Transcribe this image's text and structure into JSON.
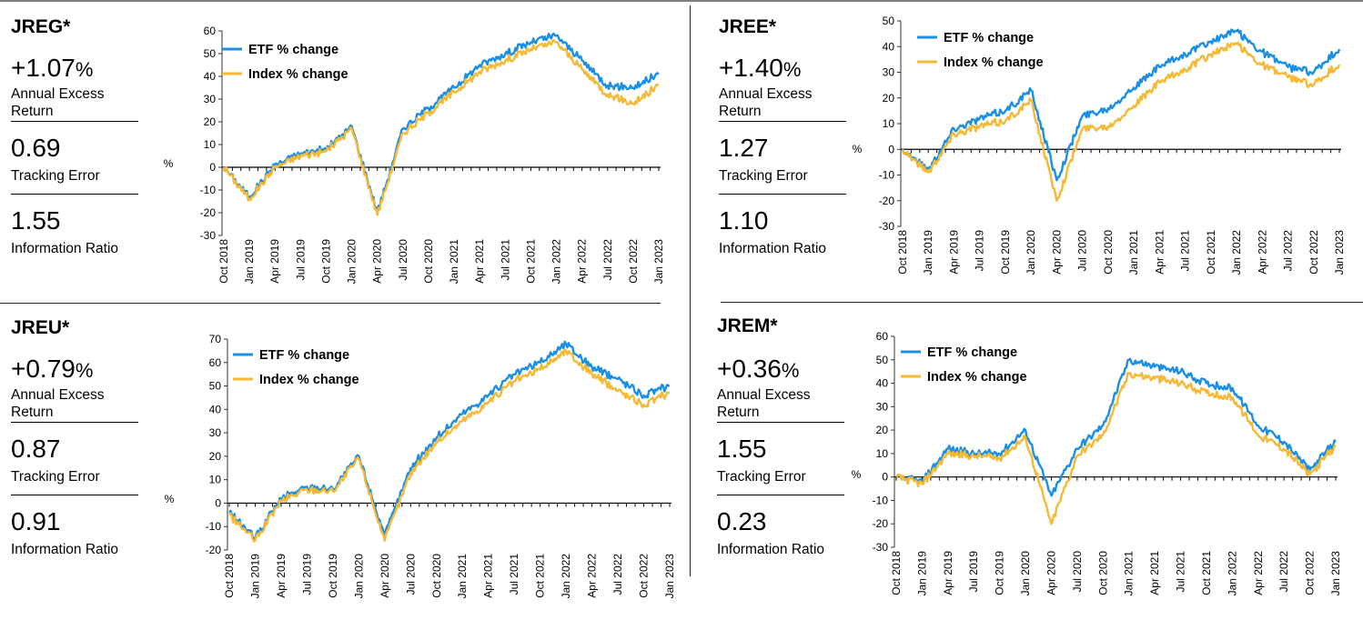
{
  "colors": {
    "etf": "#1a8fe3",
    "index": "#f5b935"
  },
  "panels": [
    {
      "ticker": "JREG*",
      "annual_excess_return": "+1.07",
      "pct_sign": "%",
      "annual_excess_return_label_1": "Annual Excess",
      "annual_excess_return_label_2": "Return",
      "tracking_error": "0.69",
      "tracking_error_label": "Tracking Error",
      "information_ratio": "1.55",
      "information_ratio_label": "Information Ratio"
    },
    {
      "ticker": "JREE*",
      "annual_excess_return": "+1.40",
      "pct_sign": "%",
      "annual_excess_return_label_1": "Annual Excess",
      "annual_excess_return_label_2": "Return",
      "tracking_error": "1.27",
      "tracking_error_label": "Tracking Error",
      "information_ratio": "1.10",
      "information_ratio_label": "Information Ratio"
    },
    {
      "ticker": "JREU*",
      "annual_excess_return": "+0.79",
      "pct_sign": "%",
      "annual_excess_return_label_1": "Annual Excess",
      "annual_excess_return_label_2": "Return",
      "tracking_error": "0.87",
      "tracking_error_label": "Tracking Error",
      "information_ratio": "0.91",
      "information_ratio_label": "Information Ratio"
    },
    {
      "ticker": "JREM*",
      "annual_excess_return": "+0.36",
      "pct_sign": "%",
      "annual_excess_return_label_1": "Annual Excess",
      "annual_excess_return_label_2": "Return",
      "tracking_error": "1.55",
      "tracking_error_label": "Tracking Error",
      "information_ratio": "0.23",
      "information_ratio_label": "Information Ratio"
    }
  ],
  "chart_data": [
    {
      "type": "line",
      "panel": "JREG*",
      "ylabel": "%",
      "ylim": [
        -30,
        60
      ],
      "yticks": [
        -30,
        -20,
        -10,
        0,
        10,
        20,
        30,
        40,
        50,
        60
      ],
      "legend_position": "top-left",
      "categories": [
        "Oct 2018",
        "Jan 2019",
        "Apr 2019",
        "Jul 2019",
        "Oct 2019",
        "Jan 2020",
        "Apr 2020",
        "Jul 2020",
        "Oct 2020",
        "Jan 2021",
        "Apr 2021",
        "Jul 2021",
        "Oct 2021",
        "Jan 2022",
        "Apr 2022",
        "Jul 2022",
        "Oct 2022",
        "Jan 2023"
      ],
      "series": [
        {
          "name": "ETF % change",
          "values": [
            0,
            -13,
            1,
            6,
            8,
            18,
            -20,
            17,
            26,
            35,
            45,
            50,
            55,
            58,
            47,
            36,
            35,
            41
          ]
        },
        {
          "name": "Index % change",
          "values": [
            0,
            -14,
            0,
            5,
            7,
            17,
            -21,
            15,
            24,
            33,
            42,
            47,
            52,
            55,
            43,
            32,
            28,
            36
          ]
        }
      ]
    },
    {
      "type": "line",
      "panel": "JREE*",
      "ylabel": "%",
      "ylim": [
        -30,
        50
      ],
      "yticks": [
        -30,
        -20,
        -10,
        0,
        10,
        20,
        30,
        40,
        50
      ],
      "legend_position": "top-left",
      "categories": [
        "Oct 2018",
        "Jan 2019",
        "Apr 2019",
        "Jul 2019",
        "Oct 2019",
        "Jan 2020",
        "Apr 2020",
        "Jul 2020",
        "Oct 2020",
        "Jan 2021",
        "Apr 2021",
        "Jul 2021",
        "Oct 2021",
        "Jan 2022",
        "Apr 2022",
        "Jul 2022",
        "Oct 2022",
        "Jan 2023"
      ],
      "series": [
        {
          "name": "ETF % change",
          "values": [
            0,
            -8,
            8,
            12,
            15,
            23,
            -12,
            13,
            16,
            24,
            32,
            37,
            42,
            46,
            38,
            32,
            30,
            39
          ]
        },
        {
          "name": "Index % change",
          "values": [
            0,
            -9,
            6,
            9,
            11,
            19,
            -20,
            8,
            9,
            17,
            26,
            31,
            37,
            41,
            33,
            28,
            25,
            33
          ]
        }
      ]
    },
    {
      "type": "line",
      "panel": "JREU*",
      "ylabel": "%",
      "ylim": [
        -20,
        70
      ],
      "yticks": [
        -20,
        -10,
        0,
        10,
        20,
        30,
        40,
        50,
        60,
        70
      ],
      "legend_position": "top-left",
      "categories": [
        "Oct 2018",
        "Jan 2019",
        "Apr 2019",
        "Jul 2019",
        "Oct 2019",
        "Jan 2020",
        "Apr 2020",
        "Jul 2020",
        "Oct 2020",
        "Jan 2021",
        "Apr 2021",
        "Jul 2021",
        "Oct 2021",
        "Jan 2022",
        "Apr 2022",
        "Jul 2022",
        "Oct 2022",
        "Jan 2023"
      ],
      "series": [
        {
          "name": "ETF % change",
          "values": [
            -4,
            -15,
            2,
            7,
            6,
            20,
            -14,
            15,
            28,
            38,
            46,
            55,
            60,
            68,
            58,
            53,
            46,
            50
          ]
        },
        {
          "name": "Index % change",
          "values": [
            -5,
            -16,
            1,
            6,
            5,
            19,
            -16,
            13,
            26,
            35,
            43,
            52,
            57,
            65,
            55,
            48,
            42,
            47
          ]
        }
      ]
    },
    {
      "type": "line",
      "panel": "JREM*",
      "ylabel": "%",
      "ylim": [
        -30,
        60
      ],
      "yticks": [
        -30,
        -20,
        -10,
        0,
        10,
        20,
        30,
        40,
        50,
        60
      ],
      "legend_position": "top-left",
      "categories": [
        "Oct 2018",
        "Jan 2019",
        "Apr 2019",
        "Jul 2019",
        "Oct 2019",
        "Jan 2020",
        "Apr 2020",
        "Jul 2020",
        "Oct 2020",
        "Jan 2021",
        "Apr 2021",
        "Jul 2021",
        "Oct 2021",
        "Jan 2022",
        "Apr 2022",
        "Jul 2022",
        "Oct 2022",
        "Jan 2023"
      ],
      "series": [
        {
          "name": "ETF % change",
          "values": [
            0,
            -2,
            12,
            10,
            10,
            20,
            -8,
            12,
            22,
            50,
            47,
            45,
            40,
            38,
            22,
            15,
            3,
            15
          ]
        },
        {
          "name": "Index % change",
          "values": [
            0,
            -3,
            10,
            9,
            8,
            17,
            -20,
            9,
            18,
            44,
            42,
            40,
            36,
            34,
            18,
            12,
            1,
            13
          ]
        }
      ]
    }
  ]
}
